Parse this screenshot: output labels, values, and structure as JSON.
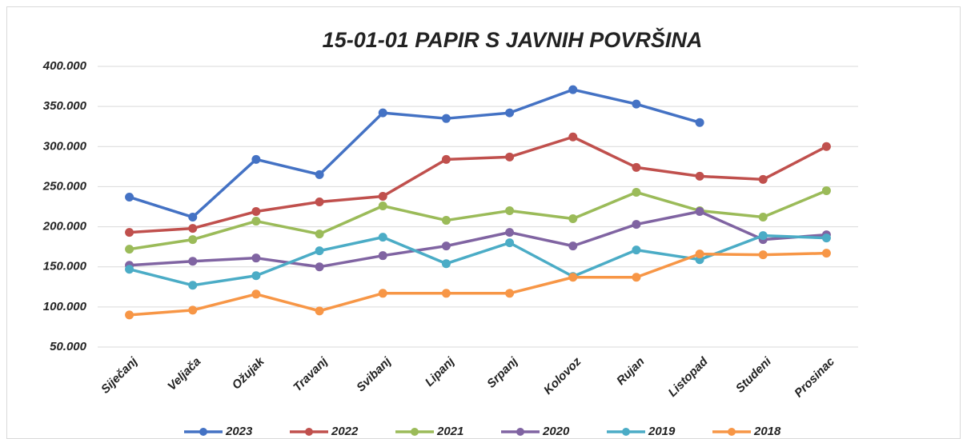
{
  "chart_data": {
    "type": "line",
    "title": "15-01-01 PAPIR S JAVNIH POVRŠINA",
    "categories": [
      "Siječanj",
      "Veljača",
      "Ožujak",
      "Travanj",
      "Svibanj",
      "Lipanj",
      "Srpanj",
      "Kolovoz",
      "Rujan",
      "Listopad",
      "Studeni",
      "Prosinac"
    ],
    "series": [
      {
        "name": "2023",
        "color": "#4472c4",
        "values": [
          237000,
          212000,
          284000,
          265000,
          342000,
          335000,
          342000,
          371000,
          353000,
          330000,
          null,
          null
        ]
      },
      {
        "name": "2022",
        "color": "#c0504d",
        "values": [
          193000,
          198000,
          219000,
          231000,
          238000,
          284000,
          287000,
          312000,
          274000,
          263000,
          259000,
          300000
        ]
      },
      {
        "name": "2021",
        "color": "#9bbb59",
        "values": [
          172000,
          184000,
          207000,
          191000,
          226000,
          208000,
          220000,
          210000,
          243000,
          220000,
          212000,
          245000
        ]
      },
      {
        "name": "2020",
        "color": "#8064a2",
        "values": [
          152000,
          157000,
          161000,
          150000,
          164000,
          176000,
          193000,
          176000,
          203000,
          219000,
          184000,
          190000
        ]
      },
      {
        "name": "2019",
        "color": "#4bacc6",
        "values": [
          147000,
          127000,
          139000,
          170000,
          187000,
          154000,
          180000,
          138000,
          171000,
          159000,
          189000,
          186000
        ]
      },
      {
        "name": "2018",
        "color": "#f79646",
        "values": [
          90000,
          96000,
          116000,
          95000,
          117000,
          117000,
          117000,
          137000,
          137000,
          166000,
          165000,
          167000
        ]
      }
    ],
    "ylim": [
      50000,
      400000
    ],
    "yticks": [
      {
        "value": 50000,
        "label": "50.000"
      },
      {
        "value": 100000,
        "label": "100.000"
      },
      {
        "value": 150000,
        "label": "150.000"
      },
      {
        "value": 200000,
        "label": "200.000"
      },
      {
        "value": 250000,
        "label": "250.000"
      },
      {
        "value": 300000,
        "label": "300.000"
      },
      {
        "value": 350000,
        "label": "350.000"
      },
      {
        "value": 400000,
        "label": "400.000"
      }
    ],
    "grid": true,
    "legend": "bottom"
  }
}
